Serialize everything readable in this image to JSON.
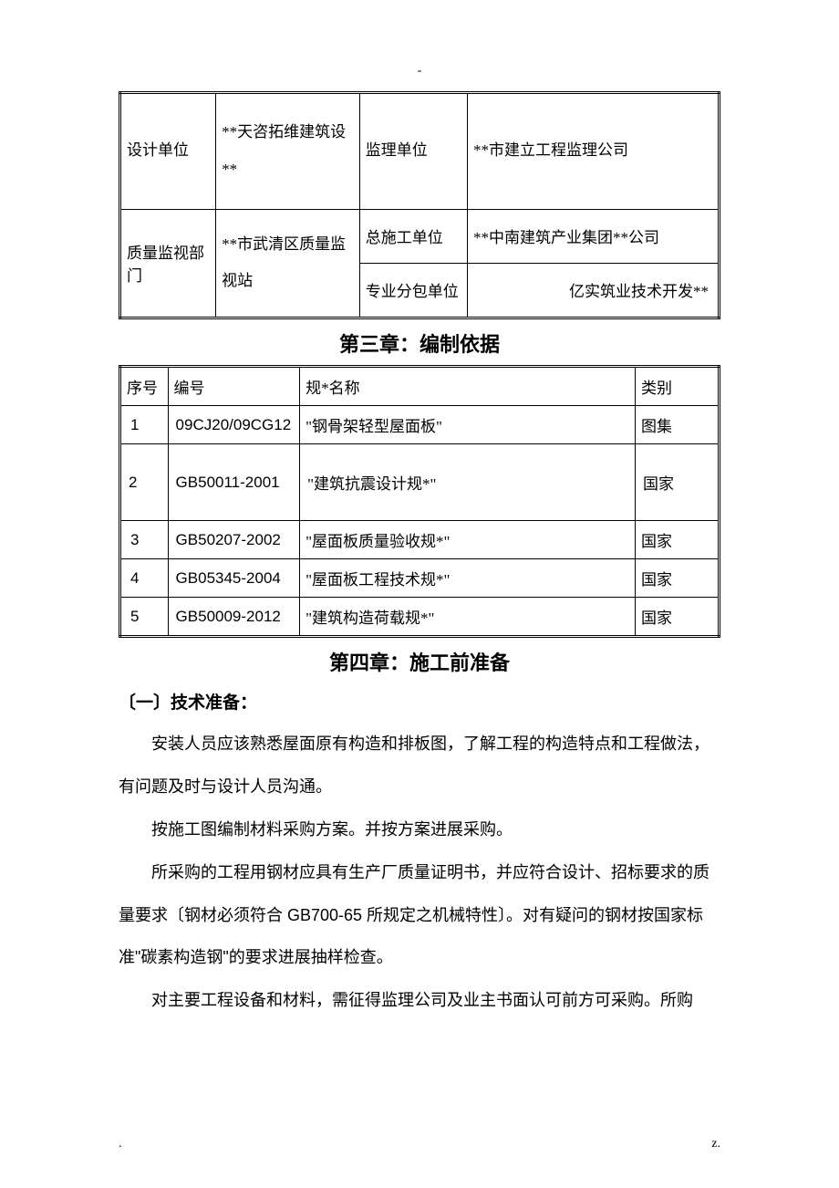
{
  "marks": {
    "top": "-",
    "bottom_left": ".",
    "bottom_right": "z."
  },
  "table1": {
    "rows": [
      {
        "l1": "设计单位",
        "l2": "**天咨拓维建筑设**",
        "l3": "监理单位",
        "l4": "**市建立工程监理公司"
      },
      {
        "l1": "质量监视部门",
        "l2": "**市武清区质量监视站",
        "r2a": "总施工单位",
        "r2b": "**中南建筑产业集团**公司",
        "r3a": "专业分包单位",
        "r3b": "亿实筑业技术开发**"
      }
    ]
  },
  "chapter3": {
    "title": "第三章：编制依据",
    "headers": {
      "seq": "序号",
      "code": "编号",
      "name": "规*名称",
      "cat": "类别"
    },
    "rows": [
      {
        "seq": "1",
        "code": "09CJ20/09CG12",
        "name": "\"钢骨架轻型屋面板\"",
        "cat": "图集"
      },
      {
        "seq": "2",
        "code": "GB50011-2001",
        "name": "\"建筑抗震设计规*\"",
        "cat": "国家"
      },
      {
        "seq": "3",
        "code": "GB50207-2002",
        "name": "\"屋面板质量验收规*\"",
        "cat": "国家"
      },
      {
        "seq": "4",
        "code": "GB05345-2004",
        "name": "\"屋面板工程技术规*\"",
        "cat": "国家"
      },
      {
        "seq": "5",
        "code": "GB50009-2012",
        "name": "\"建筑构造荷载规*\"",
        "cat": "国家"
      }
    ]
  },
  "chapter4": {
    "title": "第四章：施工前准备",
    "section1": "〔一〕技术准备：",
    "paras": [
      "安装人员应该熟悉屋面原有构造和排板图，了解工程的构造特点和工程做法，有问题及时与设计人员沟通。",
      "按施工图编制材料采购方案。并按方案进展采购。",
      "所采购的工程用钢材应具有生产厂质量证明书，并应符合设计、招标要求的质量要求〔钢材必须符合 GB700-65 所规定之机械特性〕。对有疑问的钢材按国家标准\"碳素构造钢\"的要求进展抽样检查。",
      "对主要工程设备和材料，需征得监理公司及业主书面认可前方可采购。所购"
    ]
  }
}
